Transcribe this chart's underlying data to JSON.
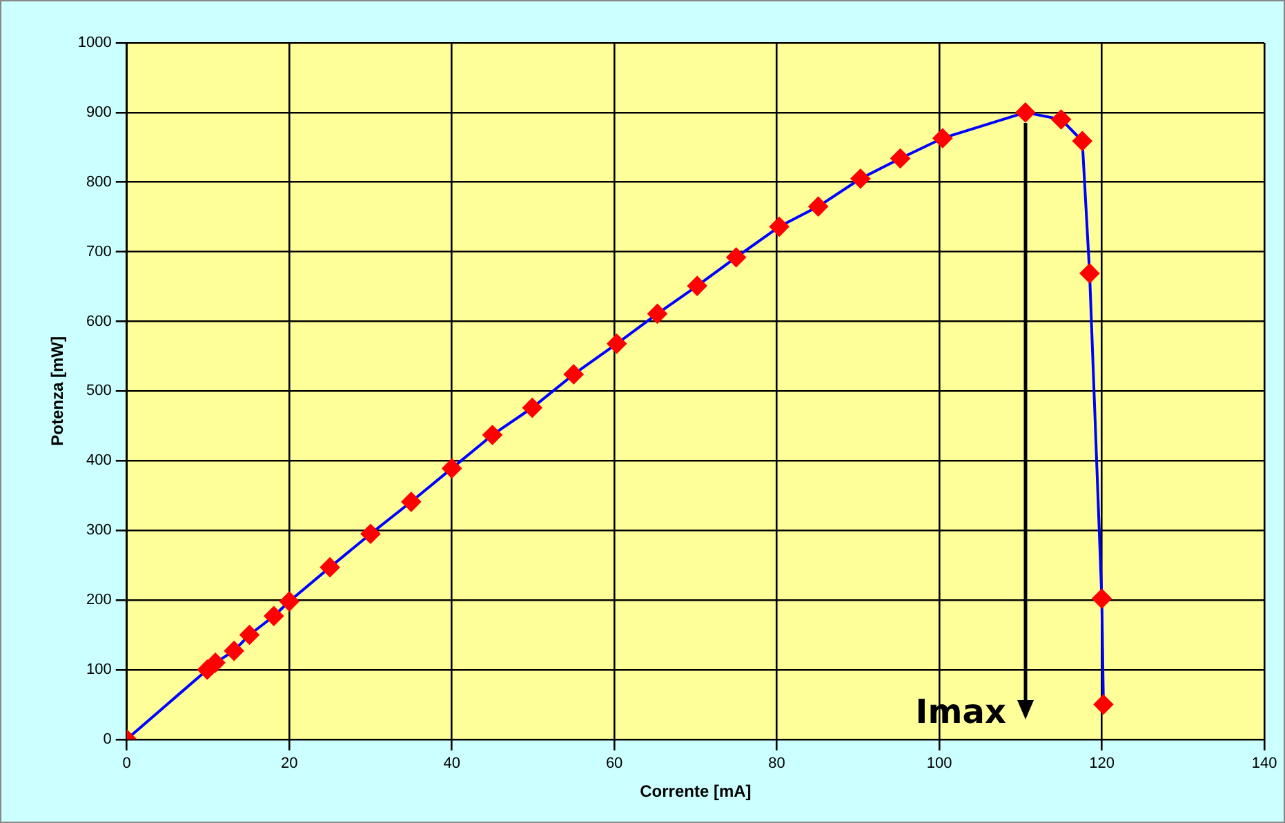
{
  "chart_data": {
    "type": "line",
    "xlabel": "Corrente [mA]",
    "ylabel": "Potenza [mW]",
    "x": [
      0,
      9.9,
      10.9,
      13.2,
      15.1,
      18.1,
      20,
      25,
      30,
      35,
      40,
      45,
      49.9,
      55,
      60.3,
      65.3,
      70.2,
      75,
      80.3,
      85.1,
      90.3,
      95.2,
      100.4,
      110.6,
      115,
      117.6,
      118.5,
      120,
      120.2
    ],
    "series": [
      {
        "color": "#0000ff",
        "values": [
          0,
          100,
          110,
          127,
          150,
          177,
          198,
          247,
          295,
          341,
          389,
          437,
          476,
          524,
          568,
          611,
          651,
          692,
          736,
          765,
          805,
          834,
          863,
          900,
          890,
          859,
          669,
          202,
          50
        ]
      }
    ],
    "xlim": [
      0,
      140
    ],
    "xticks": [
      0,
      20,
      40,
      60,
      80,
      100,
      120,
      140
    ],
    "ylim": [
      0,
      1000
    ],
    "yticks": [
      0,
      100,
      200,
      300,
      400,
      500,
      600,
      700,
      800,
      900,
      1000
    ],
    "grid": true,
    "legend": false,
    "marker": "diamond",
    "line_style": "solid",
    "annotations": [
      {
        "text": "Imax",
        "x": 110.6,
        "y": 900
      }
    ]
  }
}
